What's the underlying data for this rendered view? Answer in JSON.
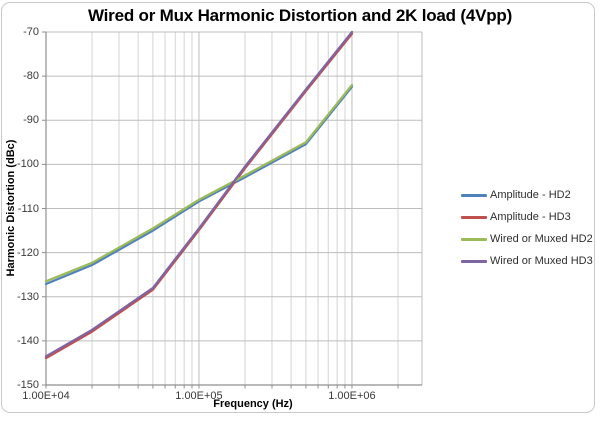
{
  "chart_data": {
    "type": "line",
    "title": "Wired or Mux Harmonic Distortion and 2K load (4Vpp)",
    "xlabel": "Frequency (Hz)",
    "ylabel": "Harmonic Distortion (dBc)",
    "x_scale": "log",
    "grid": true,
    "legend_position": "right",
    "xlim": [
      10000,
      2870000
    ],
    "ylim": [
      -150,
      -70
    ],
    "x_tick_labels": [
      "1.00E+04",
      "1.00E+05",
      "1.00E+06"
    ],
    "x_tick_values": [
      10000,
      100000,
      1000000
    ],
    "y_ticks": [
      -70,
      -80,
      -90,
      -100,
      -110,
      -120,
      -130,
      -140,
      -150
    ],
    "x": [
      10000,
      20000,
      50000,
      100000,
      200000,
      500000,
      1000000
    ],
    "series": [
      {
        "name": "Amplitude - HD2",
        "color": "#4F81BD",
        "values": [
          -127.1,
          -122.8,
          -115.0,
          -108.4,
          -102.9,
          -95.4,
          -82.4
        ]
      },
      {
        "name": "Amplitude - HD3",
        "color": "#C0504D",
        "values": [
          -143.9,
          -137.9,
          -128.4,
          -114.9,
          -100.9,
          -83.4,
          -70.4
        ]
      },
      {
        "name": "Wired or Muxed HD2",
        "color": "#9BBB59",
        "values": [
          -126.5,
          -122.3,
          -114.5,
          -108.0,
          -102.5,
          -95.0,
          -82.0
        ]
      },
      {
        "name": "Wired or Muxed HD3",
        "color": "#8064A2",
        "values": [
          -143.5,
          -137.5,
          -128.0,
          -114.5,
          -100.5,
          -83.0,
          -70.0
        ]
      }
    ]
  },
  "colors": {
    "background": "#FFFFFF",
    "frame_border": "#C9C9C9",
    "major_grid": "#BDBDBD",
    "minor_grid": "#D4D4D4",
    "axis_line": "#8F8F8F",
    "tick_text": "#3A3A3A",
    "legend_text": "#2E2E2E",
    "title_text": "#000000"
  }
}
